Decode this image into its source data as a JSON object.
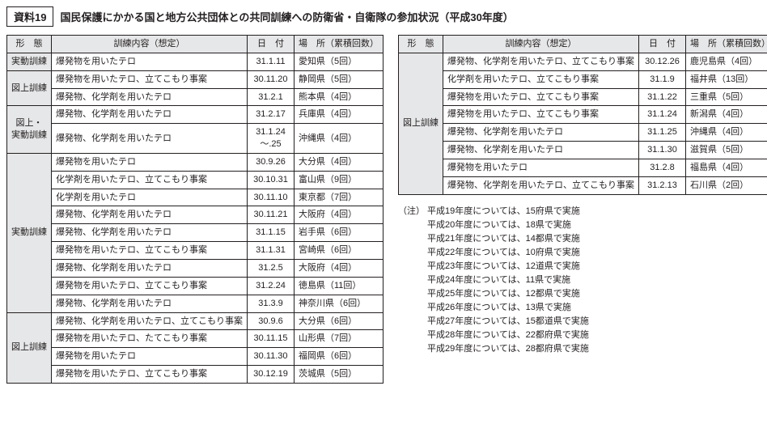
{
  "ref_label": "資料19",
  "title": "国民保護にかかる国と地方公共団体との共同訓練への防衛省・自衛隊の参加状況（平成30年度）",
  "headers": {
    "type": "形　態",
    "content": "訓練内容（想定）",
    "date": "日　付",
    "place": "場　所（累積回数）"
  },
  "left_groups": [
    {
      "type": "実動訓練",
      "rows": [
        {
          "content": "爆発物を用いたテロ",
          "date": "31.1.11",
          "place": "愛知県（5回）"
        }
      ]
    },
    {
      "type": "図上訓練",
      "rows": [
        {
          "content": "爆発物を用いたテロ、立てこもり事案",
          "date": "30.11.20",
          "place": "静岡県（5回）"
        },
        {
          "content": "爆発物、化学剤を用いたテロ",
          "date": "31.2.1",
          "place": "熊本県（4回）"
        }
      ]
    },
    {
      "type": "図上・\n実動訓練",
      "rows": [
        {
          "content": "爆発物、化学剤を用いたテロ",
          "date": "31.2.17",
          "place": "兵庫県（4回）"
        },
        {
          "content": "爆発物、化学剤を用いたテロ",
          "date": "31.1.24\n～.25",
          "place": "沖縄県（4回）"
        }
      ]
    },
    {
      "type": "実動訓練",
      "rows": [
        {
          "content": "爆発物を用いたテロ",
          "date": "30.9.26",
          "place": "大分県（4回）"
        },
        {
          "content": "化学剤を用いたテロ、立てこもり事案",
          "date": "30.10.31",
          "place": "富山県（9回）"
        },
        {
          "content": "化学剤を用いたテロ",
          "date": "30.11.10",
          "place": "東京都（7回）"
        },
        {
          "content": "爆発物、化学剤を用いたテロ",
          "date": "30.11.21",
          "place": "大阪府（4回）"
        },
        {
          "content": "爆発物、化学剤を用いたテロ",
          "date": "31.1.15",
          "place": "岩手県（6回）"
        },
        {
          "content": "爆発物を用いたテロ、立てこもり事案",
          "date": "31.1.31",
          "place": "宮崎県（6回）"
        },
        {
          "content": "爆発物、化学剤を用いたテロ",
          "date": "31.2.5",
          "place": "大阪府（4回）"
        },
        {
          "content": "爆発物を用いたテロ、立てこもり事案",
          "date": "31.2.24",
          "place": "徳島県（11回）"
        },
        {
          "content": "爆発物、化学剤を用いたテロ",
          "date": "31.3.9",
          "place": "神奈川県（6回）"
        }
      ]
    },
    {
      "type": "図上訓練",
      "rows": [
        {
          "content": "爆発物、化学剤を用いたテロ、立てこもり事案",
          "date": "30.9.6",
          "place": "大分県（6回）"
        },
        {
          "content": "爆発物を用いたテロ、たてこもり事案",
          "date": "30.11.15",
          "place": "山形県（7回）"
        },
        {
          "content": "爆発物を用いたテロ",
          "date": "30.11.30",
          "place": "福岡県（6回）"
        },
        {
          "content": "爆発物を用いたテロ、立てこもり事案",
          "date": "30.12.19",
          "place": "茨城県（5回）"
        }
      ]
    }
  ],
  "right_groups": [
    {
      "type": "図上訓練",
      "rows": [
        {
          "content": "爆発物、化学剤を用いたテロ、立てこもり事案",
          "date": "30.12.26",
          "place": "鹿児島県（4回）"
        },
        {
          "content": "化学剤を用いたテロ、立てこもり事案",
          "date": "31.1.9",
          "place": "福井県（13回）"
        },
        {
          "content": "爆発物を用いたテロ、立てこもり事案",
          "date": "31.1.22",
          "place": "三重県（5回）"
        },
        {
          "content": "爆発物を用いたテロ、立てこもり事案",
          "date": "31.1.24",
          "place": "新潟県（4回）"
        },
        {
          "content": "爆発物、化学剤を用いたテロ",
          "date": "31.1.25",
          "place": "沖縄県（4回）"
        },
        {
          "content": "爆発物、化学剤を用いたテロ",
          "date": "31.1.30",
          "place": "滋賀県（5回）"
        },
        {
          "content": "爆発物を用いたテロ",
          "date": "31.2.8",
          "place": "福島県（4回）"
        },
        {
          "content": "爆発物、化学剤を用いたテロ、立てこもり事案",
          "date": "31.2.13",
          "place": "石川県（2回）"
        }
      ]
    }
  ],
  "notes_label": "（注）",
  "notes": [
    "平成19年度については、15府県で実施",
    "平成20年度については、18県で実施",
    "平成21年度については、14都県で実施",
    "平成22年度については、10府県で実施",
    "平成23年度については、12道県で実施",
    "平成24年度については、11県で実施",
    "平成25年度については、12都県で実施",
    "平成26年度については、13県で実施",
    "平成27年度については、15都道県で実施",
    "平成28年度については、22都府県で実施",
    "平成29年度については、28都府県で実施"
  ]
}
